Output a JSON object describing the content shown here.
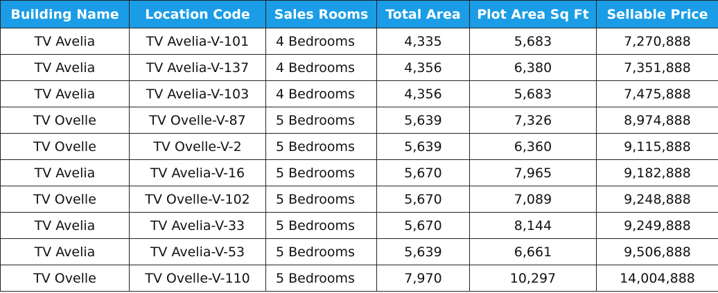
{
  "table": {
    "header": [
      "Building Name",
      "Location Code",
      "Sales Rooms",
      "Total Area",
      "Plot Area Sq Ft",
      "Sellable Price"
    ],
    "rows": [
      [
        "TV Avelia",
        "TV Avelia-V-101",
        "4 Bedrooms",
        "4,335",
        "5,683",
        "7,270,888"
      ],
      [
        "TV Avelia",
        "TV Avelia-V-137",
        "4 Bedrooms",
        "4,356",
        "6,380",
        "7,351,888"
      ],
      [
        "TV Avelia",
        "TV Avelia-V-103",
        "4 Bedrooms",
        "4,356",
        "5,683",
        "7,475,888"
      ],
      [
        "TV Ovelle",
        "TV Ovelle-V-87",
        "5 Bedrooms",
        "5,639",
        "7,326",
        "8,974,888"
      ],
      [
        "TV Ovelle",
        "TV Ovelle-V-2",
        "5 Bedrooms",
        "5,639",
        "6,360",
        "9,115,888"
      ],
      [
        "TV Avelia",
        "TV Avelia-V-16",
        "5 Bedrooms",
        "5,670",
        "7,965",
        "9,182,888"
      ],
      [
        "TV Ovelle",
        "TV Ovelle-V-102",
        "5 Bedrooms",
        "5,670",
        "7,089",
        "9,248,888"
      ],
      [
        "TV Avelia",
        "TV Avelia-V-33",
        "5 Bedrooms",
        "5,670",
        "8,144",
        "9,249,888"
      ],
      [
        "TV Avelia",
        "TV Avelia-V-53",
        "5 Bedrooms",
        "5,639",
        "6,661",
        "9,506,888"
      ],
      [
        "TV Ovelle",
        "TV Ovelle-V-110",
        "5 Bedrooms",
        "7,970",
        "10,297",
        "14,004,888"
      ]
    ]
  }
}
